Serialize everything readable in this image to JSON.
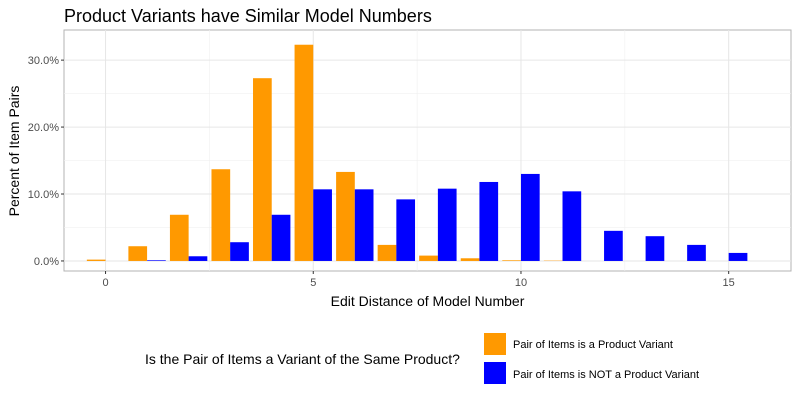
{
  "chart_data": {
    "type": "bar",
    "title": "Product Variants have Similar Model Numbers",
    "xlabel": "Edit Distance of Model Number",
    "ylabel": "Percent of Item Pairs",
    "x_ticks": [
      0,
      5,
      10,
      15
    ],
    "y_ticks": [
      0,
      10,
      20,
      30
    ],
    "y_tick_labels": [
      "0.0%",
      "10.0%",
      "20.0%",
      "30.0%"
    ],
    "xlim": [
      -1,
      16.5
    ],
    "ylim": [
      -1.5,
      34.5
    ],
    "grid": true,
    "legend_position": "bottom",
    "legend_title": "Is the Pair of Items a Variant of the Same Product?",
    "x": [
      0,
      1,
      2,
      3,
      4,
      5,
      6,
      7,
      8,
      9,
      10,
      11,
      12,
      13,
      14,
      15
    ],
    "series": [
      {
        "name": "Pair of Items is a Product Variant",
        "color": "#ff9900",
        "values": [
          0.2,
          2.2,
          6.9,
          13.7,
          27.3,
          32.3,
          13.3,
          2.4,
          0.8,
          0.4,
          0.1,
          0.05,
          0,
          0,
          0,
          0
        ]
      },
      {
        "name": "Pair of Items is NOT a Product Variant",
        "color": "#0000ff",
        "values": [
          0,
          0.1,
          0.7,
          2.8,
          6.9,
          10.7,
          10.7,
          9.2,
          10.8,
          11.8,
          13.0,
          10.4,
          4.5,
          3.7,
          2.4,
          1.2
        ]
      }
    ]
  }
}
